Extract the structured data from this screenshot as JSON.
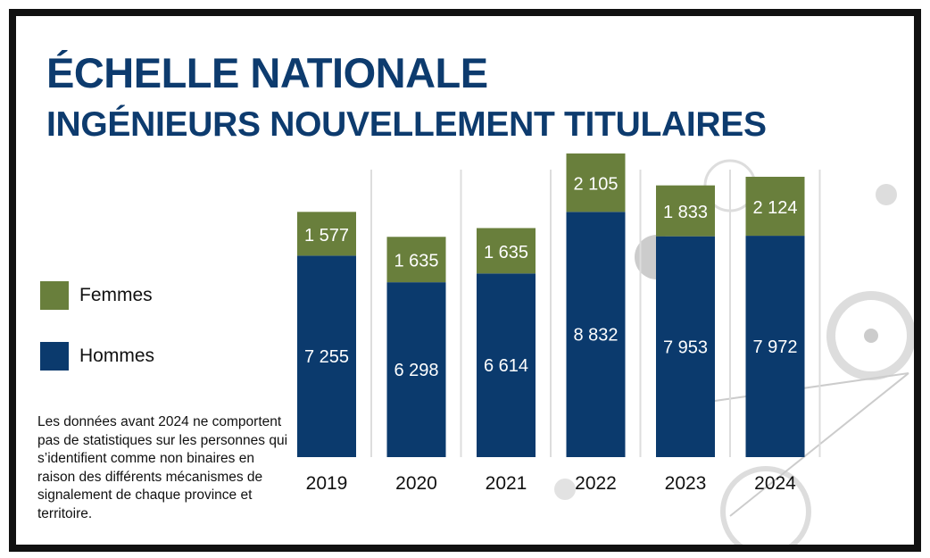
{
  "title": "ÉCHELLE NATIONALE",
  "subtitle": "INGÉNIEURS NOUVELLEMENT TITULAIRES",
  "note": "Les données avant 2024 ne comportent pas de statistiques sur les personnes qui s’identifient comme non binaires en raison des différents mécanismes de signalement de chaque province et territoire.",
  "chart_data": {
    "type": "bar",
    "stacked": true,
    "categories": [
      "2019",
      "2020",
      "2021",
      "2022",
      "2023",
      "2024"
    ],
    "series": [
      {
        "name": "Hommes",
        "color": "#0b3a6d",
        "values": [
          7255,
          6298,
          6614,
          8832,
          7953,
          7972
        ],
        "labels": [
          "7 255",
          "6 298",
          "6 614",
          "8 832",
          "7 953",
          "7 972"
        ]
      },
      {
        "name": "Femmes",
        "color": "#697f3c",
        "values": [
          1577,
          1635,
          1635,
          2105,
          1833,
          2124
        ],
        "labels": [
          "1 577",
          "1 635",
          "1 635",
          "2 105",
          "1 833",
          "2 124"
        ]
      }
    ],
    "legend": [
      "Femmes",
      "Hommes"
    ],
    "legend_placement": "left",
    "grid": false
  }
}
